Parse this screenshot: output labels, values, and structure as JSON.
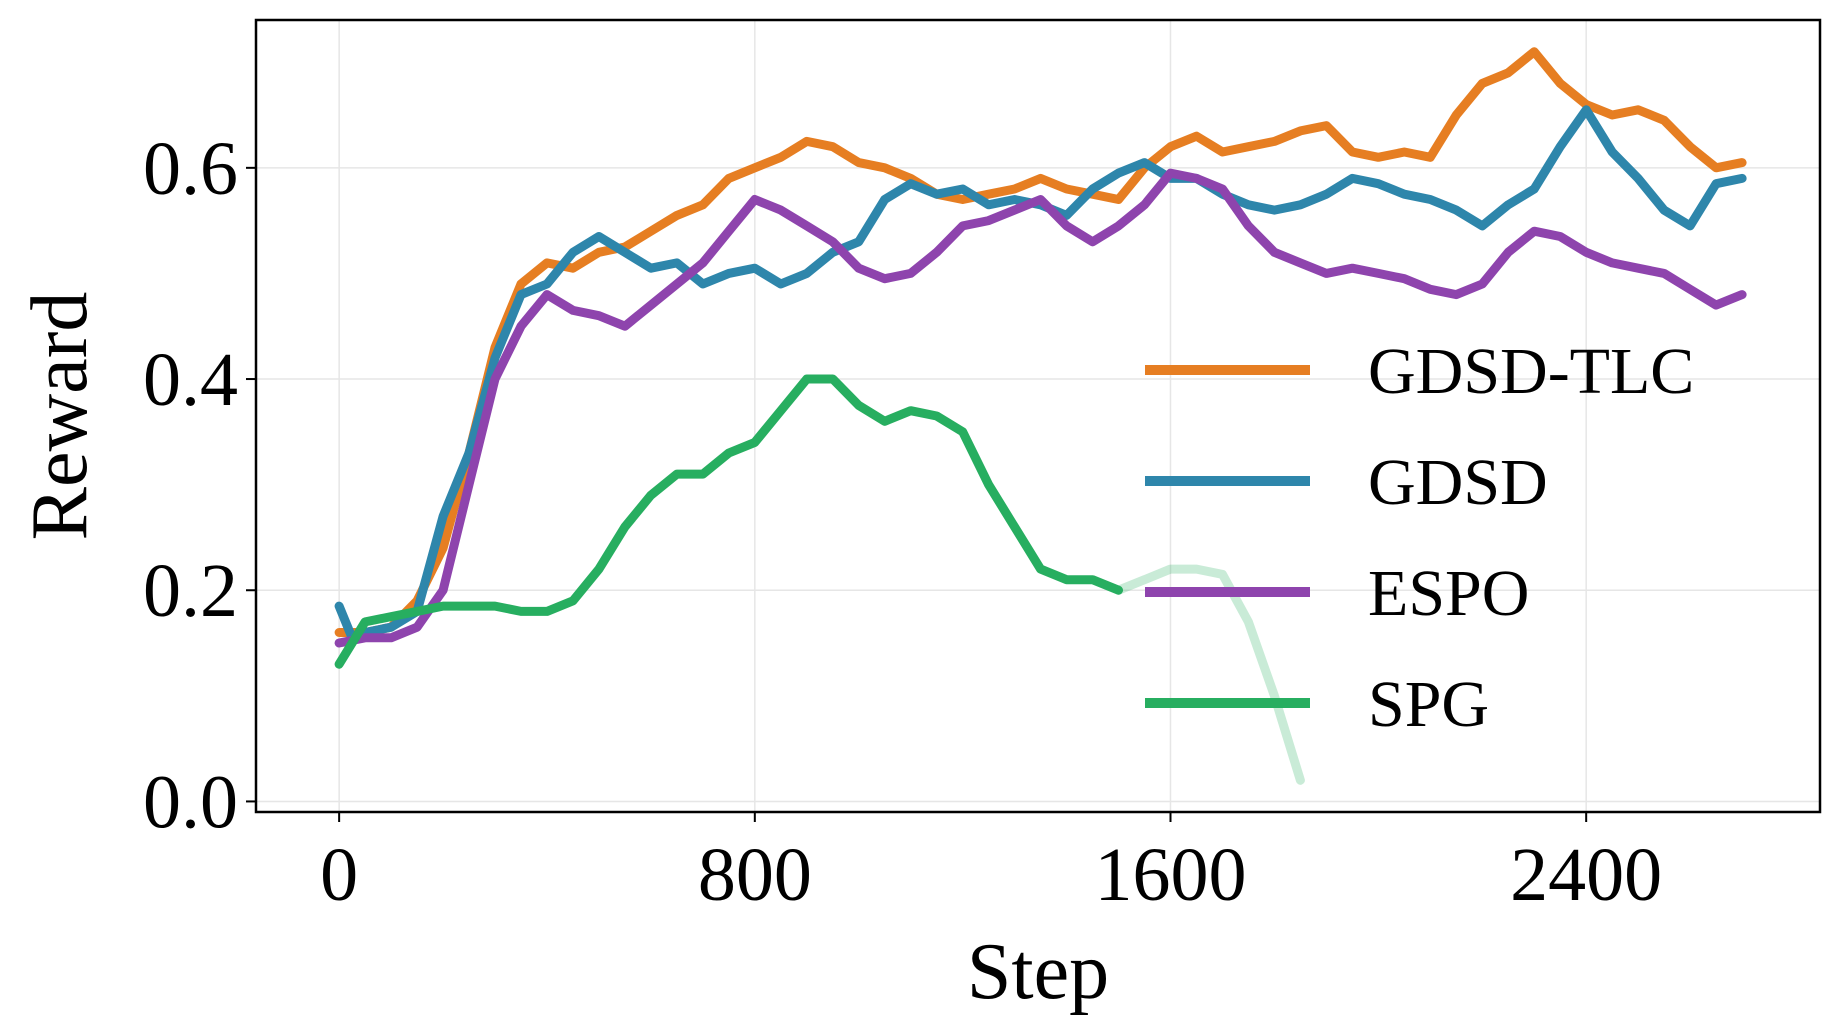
{
  "chart_data": {
    "type": "line",
    "xlabel": "Step",
    "ylabel": "Reward",
    "xlim": [
      -160,
      2850
    ],
    "ylim": [
      -0.01,
      0.74
    ],
    "xticks": [
      0,
      800,
      1600,
      2400
    ],
    "xtick_labels": [
      "0",
      "800",
      "1600",
      "2400"
    ],
    "yticks": [
      0.0,
      0.2,
      0.4,
      0.6
    ],
    "ytick_labels": [
      "0.0",
      "0.2",
      "0.4",
      "0.6"
    ],
    "grid": true,
    "legend_position": "center-right",
    "series": [
      {
        "name": "GDSD-TLC",
        "color": "#e67e22",
        "x": [
          0,
          50,
          100,
          150,
          200,
          250,
          300,
          350,
          400,
          450,
          500,
          550,
          600,
          650,
          700,
          750,
          800,
          850,
          900,
          950,
          1000,
          1050,
          1100,
          1150,
          1200,
          1250,
          1300,
          1350,
          1400,
          1450,
          1500,
          1550,
          1600,
          1650,
          1700,
          1750,
          1800,
          1850,
          1900,
          1950,
          2000,
          2050,
          2100,
          2150,
          2200,
          2250,
          2300,
          2350,
          2400,
          2450,
          2500,
          2550,
          2600,
          2650,
          2700
        ],
        "y": [
          0.16,
          0.16,
          0.165,
          0.19,
          0.24,
          0.33,
          0.43,
          0.49,
          0.51,
          0.505,
          0.52,
          0.525,
          0.54,
          0.555,
          0.565,
          0.59,
          0.6,
          0.61,
          0.625,
          0.62,
          0.605,
          0.6,
          0.59,
          0.575,
          0.57,
          0.575,
          0.58,
          0.59,
          0.58,
          0.575,
          0.57,
          0.6,
          0.62,
          0.63,
          0.615,
          0.62,
          0.625,
          0.635,
          0.64,
          0.615,
          0.61,
          0.615,
          0.61,
          0.65,
          0.68,
          0.69,
          0.71,
          0.68,
          0.66,
          0.65,
          0.655,
          0.645,
          0.62,
          0.6,
          0.605
        ]
      },
      {
        "name": "GDSD",
        "color": "#2e86ab",
        "x": [
          0,
          25,
          50,
          100,
          150,
          200,
          250,
          300,
          350,
          400,
          450,
          500,
          550,
          600,
          650,
          700,
          750,
          800,
          850,
          900,
          950,
          1000,
          1050,
          1100,
          1150,
          1200,
          1250,
          1300,
          1350,
          1400,
          1450,
          1500,
          1550,
          1600,
          1650,
          1700,
          1750,
          1800,
          1850,
          1900,
          1950,
          2000,
          2050,
          2100,
          2150,
          2200,
          2250,
          2300,
          2350,
          2400,
          2450,
          2500,
          2550,
          2600,
          2650,
          2700
        ],
        "y": [
          0.185,
          0.155,
          0.16,
          0.165,
          0.18,
          0.27,
          0.33,
          0.42,
          0.48,
          0.49,
          0.52,
          0.535,
          0.52,
          0.505,
          0.51,
          0.49,
          0.5,
          0.505,
          0.49,
          0.5,
          0.52,
          0.53,
          0.57,
          0.585,
          0.575,
          0.58,
          0.565,
          0.57,
          0.565,
          0.555,
          0.58,
          0.595,
          0.605,
          0.59,
          0.59,
          0.575,
          0.565,
          0.56,
          0.565,
          0.575,
          0.59,
          0.585,
          0.575,
          0.57,
          0.56,
          0.545,
          0.565,
          0.58,
          0.62,
          0.655,
          0.615,
          0.59,
          0.56,
          0.545,
          0.585,
          0.59
        ]
      },
      {
        "name": "ESPO",
        "color": "#8e44ad",
        "x": [
          0,
          50,
          100,
          150,
          200,
          250,
          300,
          350,
          400,
          450,
          500,
          550,
          600,
          650,
          700,
          750,
          800,
          850,
          900,
          950,
          1000,
          1050,
          1100,
          1150,
          1200,
          1250,
          1300,
          1350,
          1400,
          1450,
          1500,
          1550,
          1600,
          1650,
          1700,
          1750,
          1800,
          1850,
          1900,
          1950,
          2000,
          2050,
          2100,
          2150,
          2200,
          2250,
          2300,
          2350,
          2400,
          2450,
          2500,
          2550,
          2600,
          2650,
          2700
        ],
        "y": [
          0.15,
          0.155,
          0.155,
          0.165,
          0.2,
          0.3,
          0.4,
          0.45,
          0.48,
          0.465,
          0.46,
          0.45,
          0.47,
          0.49,
          0.51,
          0.54,
          0.57,
          0.56,
          0.545,
          0.53,
          0.505,
          0.495,
          0.5,
          0.52,
          0.545,
          0.55,
          0.56,
          0.57,
          0.545,
          0.53,
          0.545,
          0.565,
          0.595,
          0.59,
          0.58,
          0.545,
          0.52,
          0.51,
          0.5,
          0.505,
          0.5,
          0.495,
          0.485,
          0.48,
          0.49,
          0.52,
          0.54,
          0.535,
          0.52,
          0.51,
          0.505,
          0.5,
          0.485,
          0.47,
          0.48
        ]
      },
      {
        "name": "SPG",
        "color": "#27ae60",
        "x": [
          0,
          50,
          100,
          150,
          200,
          250,
          300,
          350,
          400,
          450,
          500,
          550,
          600,
          650,
          700,
          750,
          800,
          850,
          900,
          950,
          1000,
          1050,
          1100,
          1150,
          1200,
          1250,
          1300,
          1350,
          1400,
          1450,
          1500,
          1550,
          1600,
          1650,
          1700,
          1750,
          1800,
          1850
        ],
        "y": [
          0.13,
          0.17,
          0.175,
          0.18,
          0.185,
          0.185,
          0.185,
          0.18,
          0.18,
          0.19,
          0.22,
          0.26,
          0.29,
          0.31,
          0.31,
          0.33,
          0.34,
          0.37,
          0.4,
          0.4,
          0.375,
          0.36,
          0.37,
          0.365,
          0.35,
          0.3,
          0.26,
          0.22,
          0.21,
          0.21,
          0.2,
          0.21,
          0.22,
          0.22,
          0.215,
          0.17,
          0.1,
          0.02
        ],
        "faded_from_x": 1500
      }
    ]
  }
}
